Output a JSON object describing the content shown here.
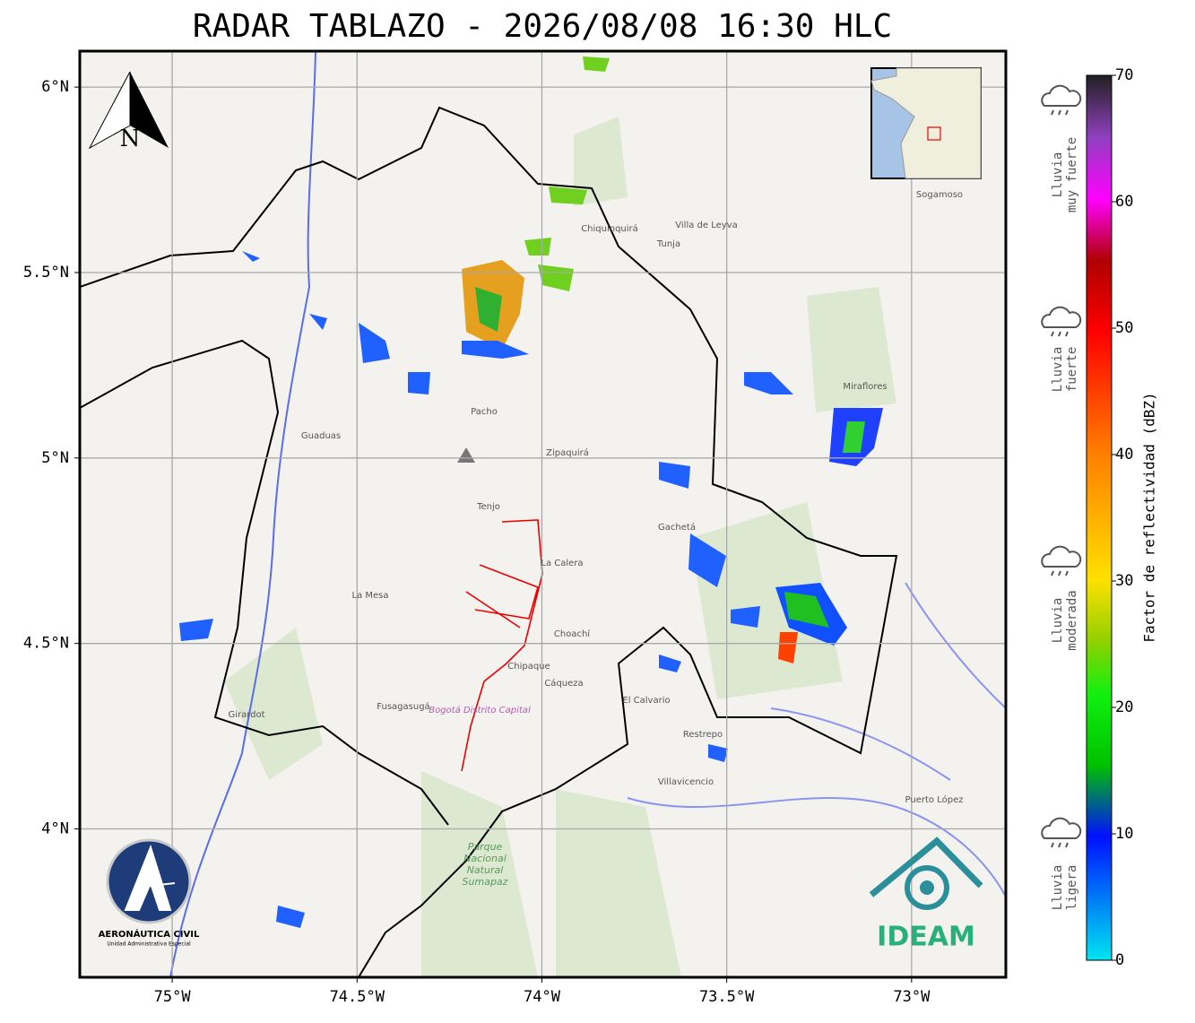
{
  "title": "RADAR TABLAZO - 2026/08/08 16:30 HLC",
  "map": {
    "xlim": [
      -75.25,
      -72.745
    ],
    "ylim": [
      3.6,
      6.097
    ],
    "grid": true,
    "xticks": [
      {
        "value": -75,
        "label": "75°W"
      },
      {
        "value": -74.5,
        "label": "74.5°W"
      },
      {
        "value": -74,
        "label": "74°W"
      },
      {
        "value": -73.5,
        "label": "73.5°W"
      },
      {
        "value": -73,
        "label": "73°W"
      }
    ],
    "yticks": [
      {
        "value": 4,
        "label": "4°N"
      },
      {
        "value": 4.5,
        "label": "4.5°N"
      },
      {
        "value": 5,
        "label": "5°N"
      },
      {
        "value": 5.5,
        "label": "5.5°N"
      },
      {
        "value": 6,
        "label": "6°N"
      }
    ],
    "places": [
      "Villavicencio",
      "Villa de Leyva",
      "Tunja",
      "Sogamoso",
      "Zipaquirá",
      "Fusagasugá",
      "La Mesa",
      "Chiquinquirá",
      "Girardot",
      "Guaduas",
      "Choachí",
      "Gachetá",
      "El Calvario",
      "Restrepo",
      "Puerto López",
      "Miraflores",
      "Pacho",
      "La Calera",
      "Chipaque",
      "Cáqueza",
      "Tenjo"
    ],
    "park": [
      "Parque",
      "Nacional",
      "Natural",
      "Sumapaz"
    ],
    "district": "Bogotá Distrito Capital",
    "north": "N"
  },
  "colorbar": {
    "label": "Factor de reflectividad (dBZ)",
    "lim": [
      0,
      70
    ],
    "ticks": [
      0,
      10,
      20,
      30,
      40,
      50,
      60,
      70
    ]
  },
  "rain_legend": [
    [
      "Lluvia",
      "muy fuerte"
    ],
    [
      "Lluvia",
      "fuerte"
    ],
    [
      "Lluvia",
      "moderada"
    ],
    [
      "Lluvia",
      "ligera"
    ]
  ],
  "logos": {
    "aerocivil": [
      "AERONÁUTICA CIVIL",
      "Unidad Administrativa Especial"
    ],
    "ideam": "IDEAM"
  }
}
